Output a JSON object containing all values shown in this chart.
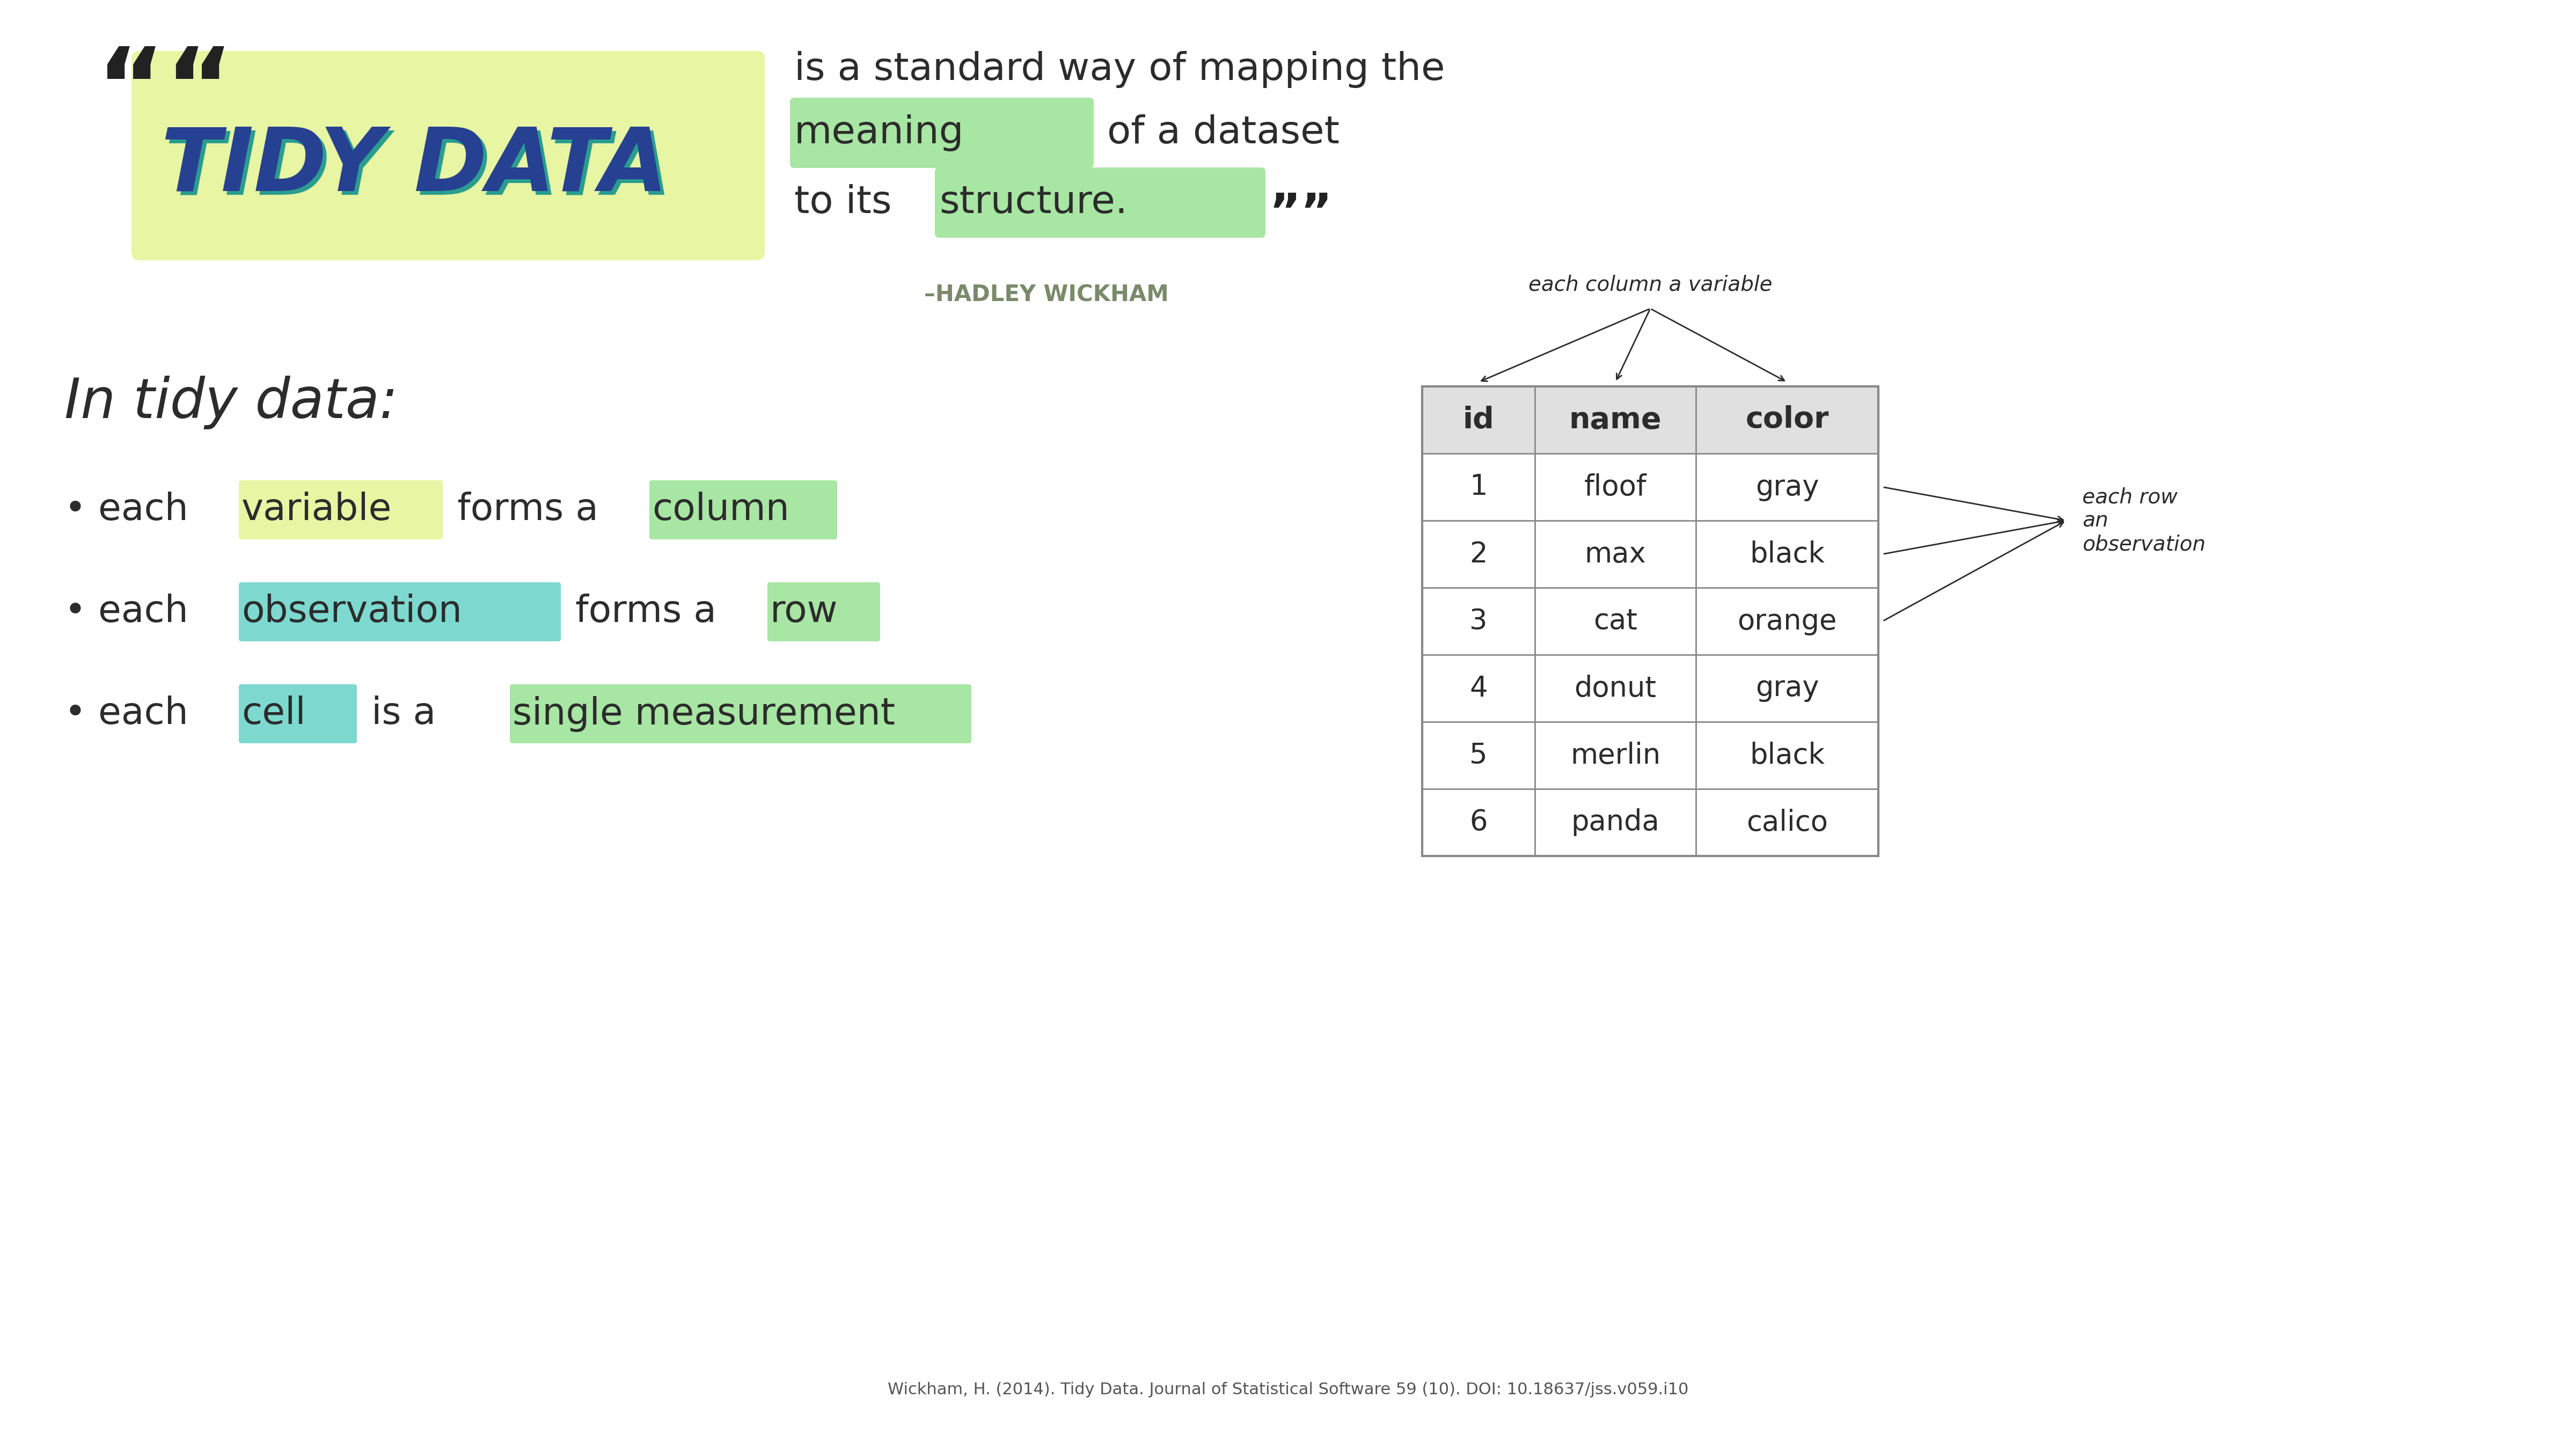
{
  "bg_color": "#ffffff",
  "yellow_green": "#e8f5a3",
  "teal_color": "#2a9d8f",
  "navy_color": "#264191",
  "dark_text": "#2c2c2c",
  "green_highlight": "#a8e6a3",
  "teal_highlight": "#7dd9d0",
  "hadley_color": "#7a8a6a",
  "table_border": "#888888",
  "hadley_credit": "–HADLEY WICKHAM",
  "tidy_data_label": "TIDY DATA",
  "table_ids": [
    "1",
    "2",
    "3",
    "4",
    "5",
    "6"
  ],
  "table_names": [
    "floof",
    "max",
    "cat",
    "donut",
    "merlin",
    "panda"
  ],
  "table_colors": [
    "gray",
    "black",
    "orange",
    "gray",
    "black",
    "calico"
  ],
  "col_headers": [
    "id",
    "name",
    "color"
  ],
  "col_annot": "each column a variable",
  "row_annot": "each row\nan\nobservation",
  "citation": "Wickham, H. (2014). Tidy Data. Journal of Statistical Software 59 (10). DOI: 10.18637/jss.v059.i10"
}
